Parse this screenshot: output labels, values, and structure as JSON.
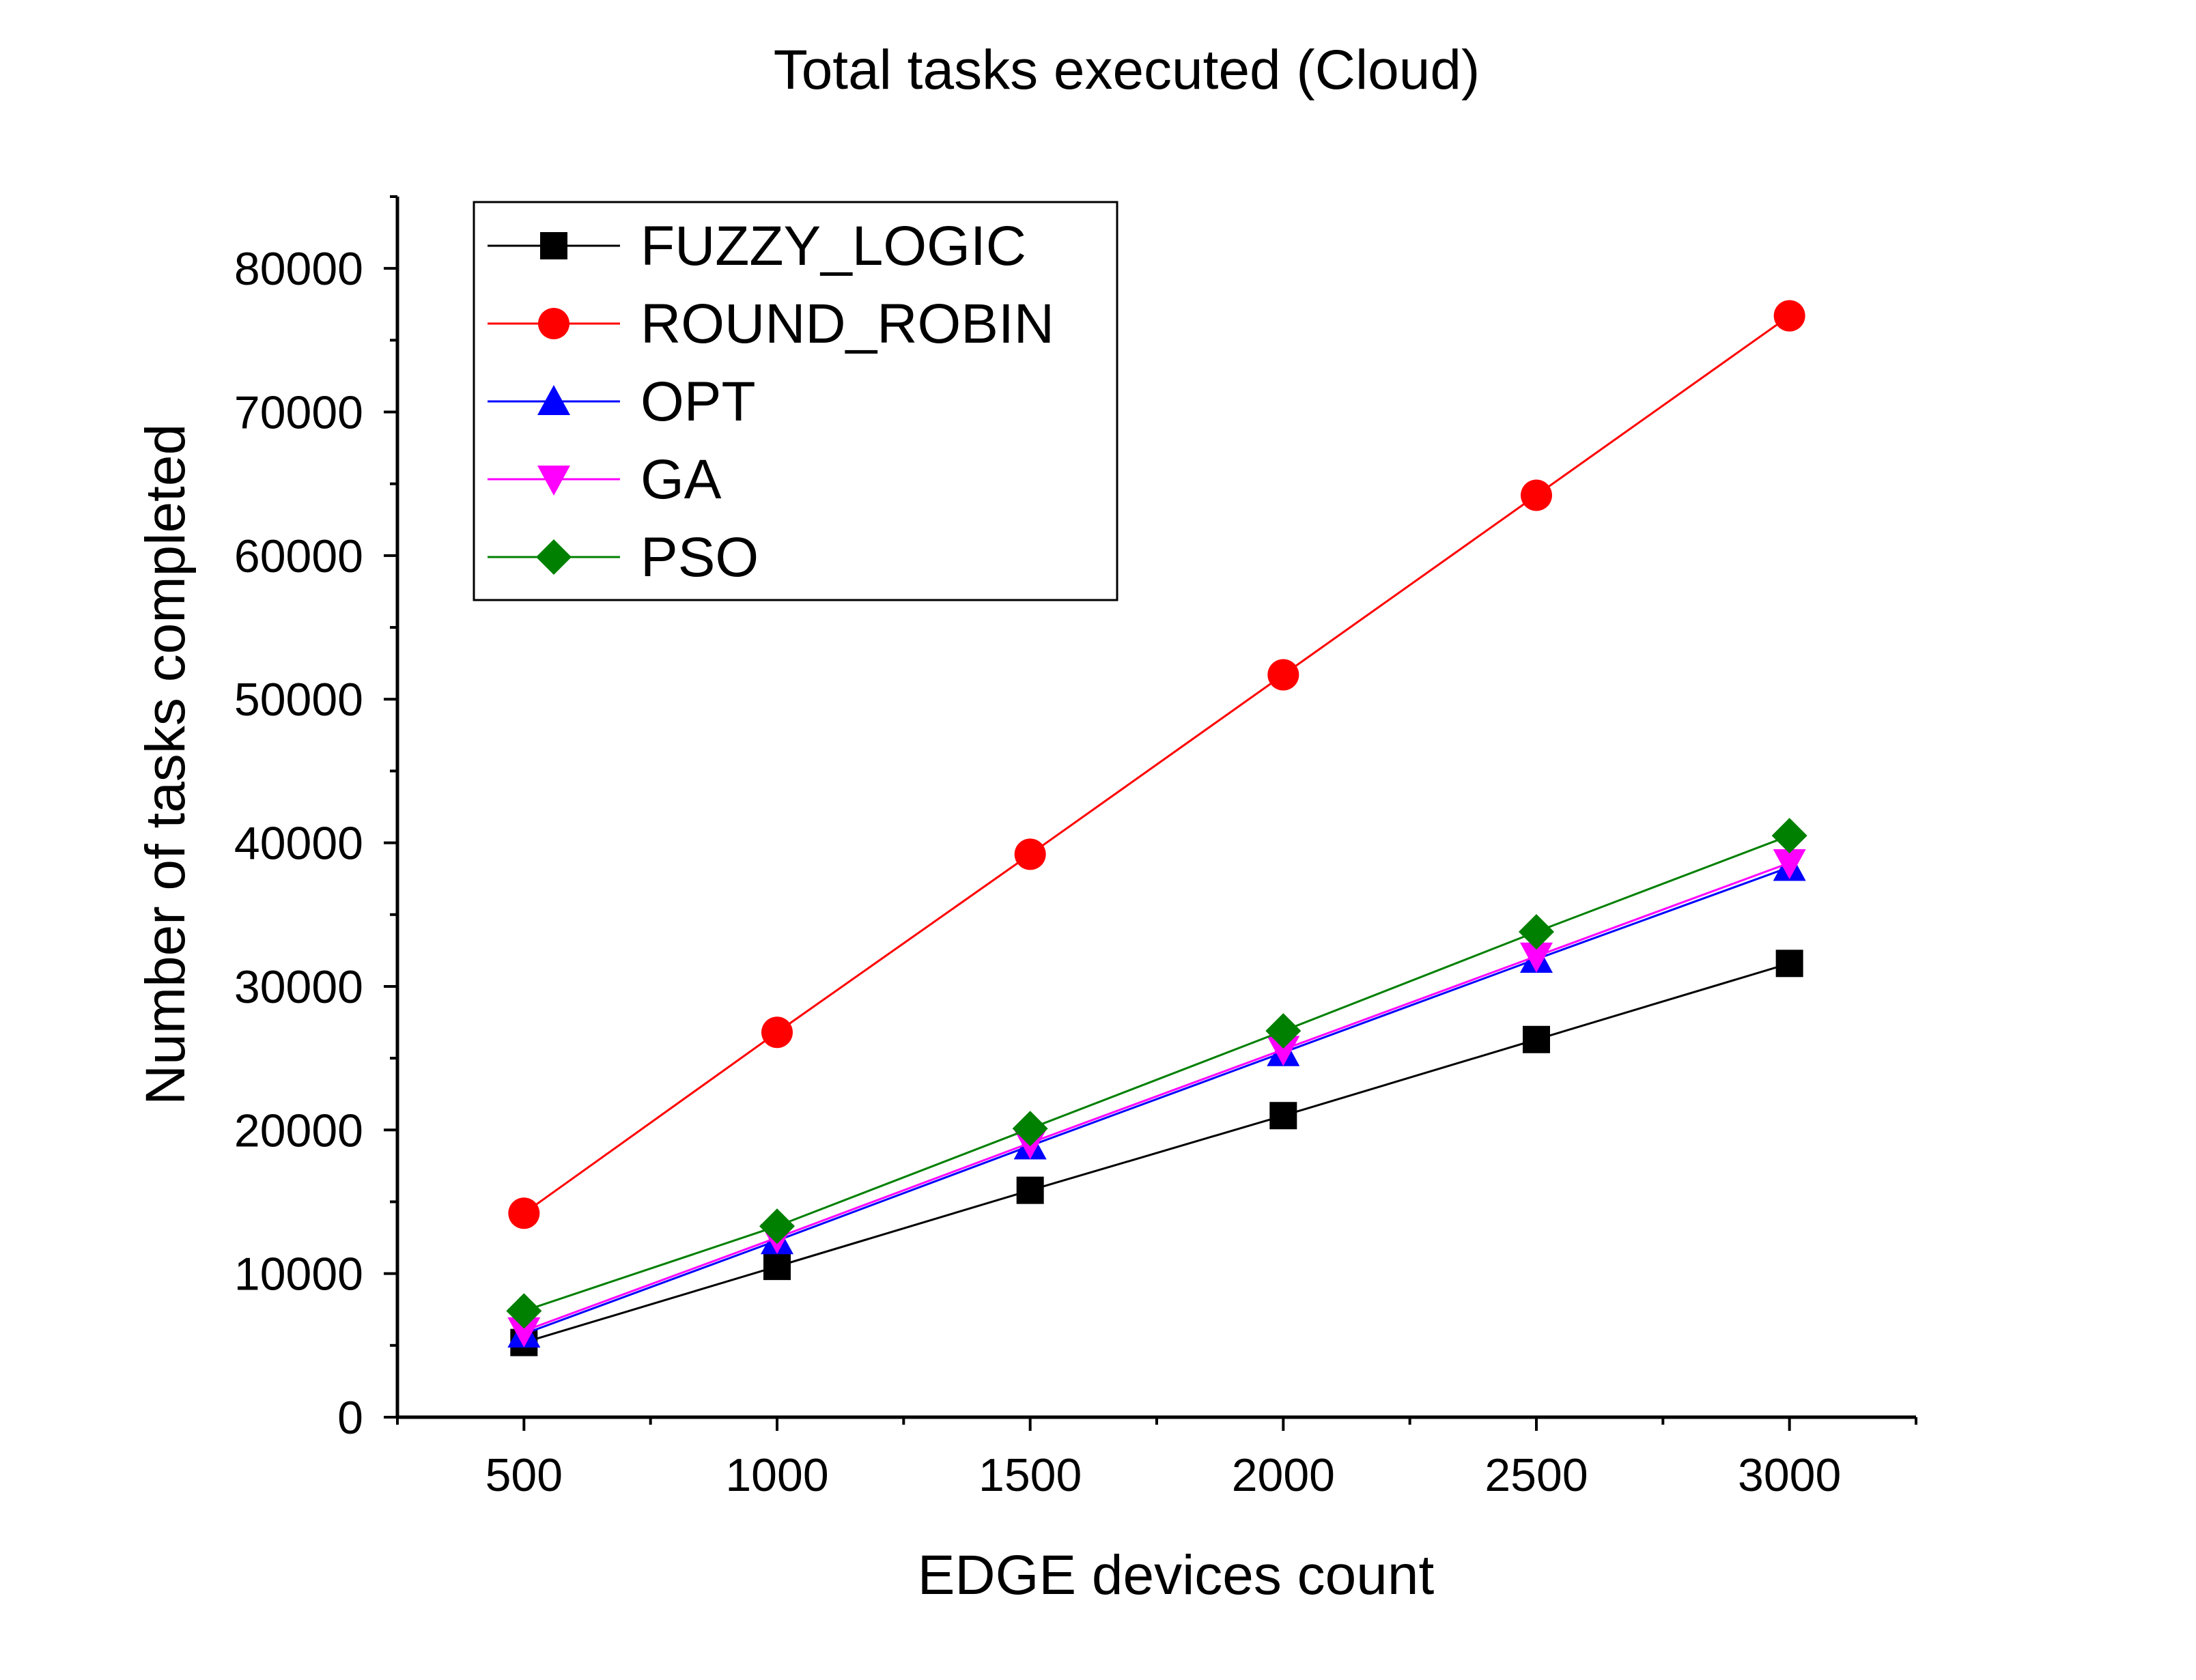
{
  "chart_data": {
    "type": "line",
    "title": "Total tasks executed (Cloud)",
    "xlabel": "EDGE devices count",
    "ylabel": "Number of tasks completed",
    "x": [
      500,
      1000,
      1500,
      2000,
      2500,
      3000
    ],
    "xlim": [
      250,
      3250
    ],
    "ylim": [
      0,
      85000
    ],
    "x_ticks": [
      500,
      1000,
      1500,
      2000,
      2500,
      3000
    ],
    "y_ticks": [
      0,
      10000,
      20000,
      30000,
      40000,
      50000,
      60000,
      70000,
      80000
    ],
    "grid": false,
    "legend_position": "top-left",
    "series": [
      {
        "name": "FUZZY_LOGIC",
        "color": "#000000",
        "marker": "square",
        "values": [
          5200,
          10500,
          15800,
          21000,
          26300,
          31600
        ]
      },
      {
        "name": "ROUND_ROBIN",
        "color": "#ff0000",
        "marker": "circle",
        "values": [
          14200,
          26800,
          39200,
          51700,
          64200,
          76700
        ]
      },
      {
        "name": "OPT",
        "color": "#0000ff",
        "marker": "triangle-up",
        "values": [
          5800,
          12300,
          18900,
          25400,
          31900,
          38300
        ]
      },
      {
        "name": "GA",
        "color": "#ff00ff",
        "marker": "triangle-down",
        "values": [
          6000,
          12500,
          19100,
          25600,
          32100,
          38600
        ]
      },
      {
        "name": "PSO",
        "color": "#008000",
        "marker": "diamond",
        "values": [
          7400,
          13300,
          20100,
          26900,
          33800,
          40500
        ]
      }
    ]
  }
}
